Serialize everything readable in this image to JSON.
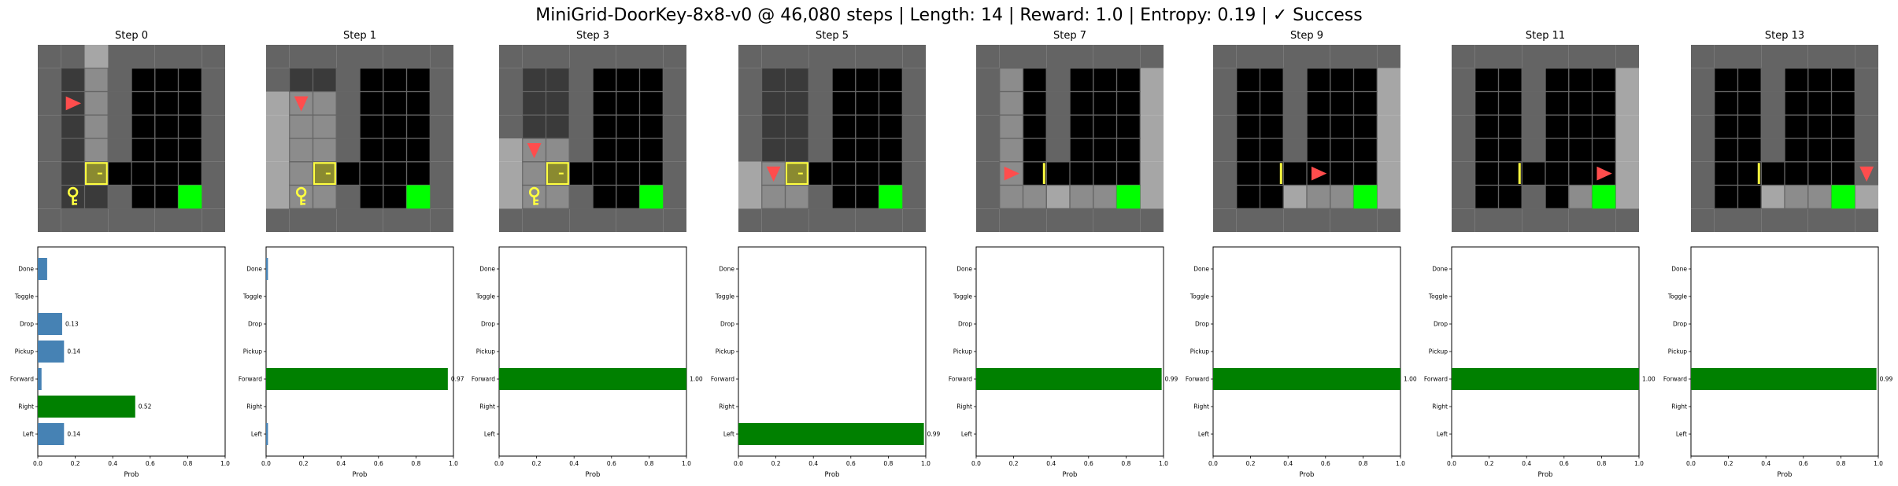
{
  "figure_title": "MiniGrid-DoorKey-8x8-v0 @ 46,080 steps | Length: 14 | Reward: 1.0 | Entropy: 0.19 | ✓ Success",
  "x_axis_label": "Prob",
  "x_ticks": [
    "0.0",
    "0.2",
    "0.4",
    "0.6",
    "0.8",
    "1.0"
  ],
  "actions": [
    "Left",
    "Right",
    "Forward",
    "Pickup",
    "Drop",
    "Toggle",
    "Done"
  ],
  "colors": {
    "best_action": "#008000",
    "other_action": "#4682b4",
    "agent": "#ff4d4d",
    "goal": "#00ff00",
    "key_and_door": "#ffff40",
    "wall": "#646464",
    "unseen": "#000000"
  },
  "chart_data": [
    {
      "type": "bar",
      "title": "Step 0",
      "xlabel": "Prob",
      "xlim": [
        0,
        1
      ],
      "categories": [
        "Left",
        "Right",
        "Forward",
        "Pickup",
        "Drop",
        "Toggle",
        "Done"
      ],
      "values": [
        0.14,
        0.52,
        0.02,
        0.14,
        0.13,
        0.0,
        0.05
      ],
      "labels": [
        "0.14",
        "0.52",
        "",
        "0.14",
        "0.13",
        "",
        ""
      ]
    },
    {
      "type": "bar",
      "title": "Step 1",
      "xlabel": "Prob",
      "xlim": [
        0,
        1
      ],
      "categories": [
        "Left",
        "Right",
        "Forward",
        "Pickup",
        "Drop",
        "Toggle",
        "Done"
      ],
      "values": [
        0.01,
        0.0,
        0.97,
        0.0,
        0.0,
        0.0,
        0.01
      ],
      "labels": [
        "",
        "",
        "0.97",
        "",
        "",
        "",
        ""
      ]
    },
    {
      "type": "bar",
      "title": "Step 3",
      "xlabel": "Prob",
      "xlim": [
        0,
        1
      ],
      "categories": [
        "Left",
        "Right",
        "Forward",
        "Pickup",
        "Drop",
        "Toggle",
        "Done"
      ],
      "values": [
        0.0,
        0.0,
        1.0,
        0.0,
        0.0,
        0.0,
        0.0
      ],
      "labels": [
        "",
        "",
        "1.00",
        "",
        "",
        "",
        ""
      ]
    },
    {
      "type": "bar",
      "title": "Step 5",
      "xlabel": "Prob",
      "xlim": [
        0,
        1
      ],
      "categories": [
        "Left",
        "Right",
        "Forward",
        "Pickup",
        "Drop",
        "Toggle",
        "Done"
      ],
      "values": [
        0.99,
        0.0,
        0.0,
        0.0,
        0.0,
        0.0,
        0.0
      ],
      "labels": [
        "0.99",
        "",
        "",
        "",
        "",
        "",
        ""
      ]
    },
    {
      "type": "bar",
      "title": "Step 7",
      "xlabel": "Prob",
      "xlim": [
        0,
        1
      ],
      "categories": [
        "Left",
        "Right",
        "Forward",
        "Pickup",
        "Drop",
        "Toggle",
        "Done"
      ],
      "values": [
        0.0,
        0.0,
        0.99,
        0.0,
        0.0,
        0.0,
        0.0
      ],
      "labels": [
        "",
        "",
        "0.99",
        "",
        "",
        "",
        ""
      ]
    },
    {
      "type": "bar",
      "title": "Step 9",
      "xlabel": "Prob",
      "xlim": [
        0,
        1
      ],
      "categories": [
        "Left",
        "Right",
        "Forward",
        "Pickup",
        "Drop",
        "Toggle",
        "Done"
      ],
      "values": [
        0.0,
        0.0,
        1.0,
        0.0,
        0.0,
        0.0,
        0.0
      ],
      "labels": [
        "",
        "",
        "1.00",
        "",
        "",
        "",
        ""
      ]
    },
    {
      "type": "bar",
      "title": "Step 11",
      "xlabel": "Prob",
      "xlim": [
        0,
        1
      ],
      "categories": [
        "Left",
        "Right",
        "Forward",
        "Pickup",
        "Drop",
        "Toggle",
        "Done"
      ],
      "values": [
        0.0,
        0.0,
        1.0,
        0.0,
        0.0,
        0.0,
        0.0
      ],
      "labels": [
        "",
        "",
        "1.00",
        "",
        "",
        "",
        ""
      ]
    },
    {
      "type": "bar",
      "title": "Step 13",
      "xlabel": "Prob",
      "xlim": [
        0,
        1
      ],
      "categories": [
        "Left",
        "Right",
        "Forward",
        "Pickup",
        "Drop",
        "Toggle",
        "Done"
      ],
      "values": [
        0.0,
        0.0,
        0.99,
        0.0,
        0.0,
        0.0,
        0.0
      ],
      "labels": [
        "",
        "",
        "0.99",
        "",
        "",
        "",
        ""
      ]
    }
  ],
  "frames": [
    {
      "agent": [
        1,
        2
      ],
      "dir": "right",
      "has_key": true,
      "door_open": false,
      "bright": [
        [
          2,
          0
        ],
        [
          2,
          1
        ],
        [
          2,
          2
        ],
        [
          2,
          3
        ],
        [
          2,
          4
        ]
      ]
    },
    {
      "agent": [
        1,
        2
      ],
      "dir": "down",
      "has_key": true,
      "door_open": false,
      "bright": [
        [
          0,
          2
        ],
        [
          0,
          3
        ],
        [
          0,
          4
        ],
        [
          0,
          5
        ],
        [
          0,
          6
        ],
        [
          1,
          2
        ],
        [
          1,
          3
        ],
        [
          1,
          4
        ],
        [
          1,
          5
        ],
        [
          1,
          6
        ],
        [
          2,
          2
        ],
        [
          2,
          3
        ],
        [
          2,
          4
        ],
        [
          2,
          5
        ],
        [
          2,
          6
        ]
      ]
    },
    {
      "agent": [
        1,
        4
      ],
      "dir": "down",
      "has_key": true,
      "door_open": false,
      "bright": [
        [
          0,
          4
        ],
        [
          0,
          5
        ],
        [
          0,
          6
        ],
        [
          1,
          4
        ],
        [
          1,
          5
        ],
        [
          1,
          6
        ],
        [
          2,
          4
        ],
        [
          2,
          5
        ],
        [
          2,
          6
        ]
      ]
    },
    {
      "agent": [
        1,
        5
      ],
      "dir": "down",
      "has_key": false,
      "door_open": false,
      "bright": [
        [
          0,
          5
        ],
        [
          0,
          6
        ],
        [
          1,
          5
        ],
        [
          1,
          6
        ],
        [
          2,
          5
        ],
        [
          2,
          6
        ]
      ]
    },
    {
      "agent": [
        1,
        5
      ],
      "dir": "right",
      "has_key": false,
      "door_open": true,
      "bright": [
        [
          1,
          1
        ],
        [
          1,
          2
        ],
        [
          1,
          3
        ],
        [
          1,
          4
        ],
        [
          1,
          5
        ],
        [
          1,
          6
        ],
        [
          2,
          6
        ],
        [
          3,
          6
        ],
        [
          4,
          6
        ],
        [
          5,
          6
        ],
        [
          6,
          6
        ],
        [
          7,
          1
        ],
        [
          7,
          2
        ],
        [
          7,
          3
        ],
        [
          7,
          4
        ],
        [
          7,
          5
        ],
        [
          7,
          6
        ]
      ]
    },
    {
      "agent": [
        4,
        5
      ],
      "dir": "right",
      "has_key": false,
      "door_open": true,
      "bright": [
        [
          7,
          1
        ],
        [
          7,
          2
        ],
        [
          7,
          3
        ],
        [
          7,
          4
        ],
        [
          7,
          5
        ],
        [
          7,
          6
        ],
        [
          3,
          6
        ],
        [
          4,
          6
        ],
        [
          5,
          6
        ],
        [
          6,
          6
        ]
      ]
    },
    {
      "agent": [
        6,
        5
      ],
      "dir": "right",
      "has_key": false,
      "door_open": true,
      "bright": [
        [
          7,
          1
        ],
        [
          7,
          2
        ],
        [
          7,
          3
        ],
        [
          7,
          4
        ],
        [
          7,
          5
        ],
        [
          7,
          6
        ],
        [
          5,
          6
        ],
        [
          6,
          6
        ]
      ]
    },
    {
      "agent": [
        7,
        5
      ],
      "dir": "down",
      "has_key": false,
      "door_open": true,
      "bright": [
        [
          3,
          6
        ],
        [
          4,
          6
        ],
        [
          5,
          6
        ],
        [
          6,
          6
        ],
        [
          7,
          6
        ]
      ]
    }
  ]
}
